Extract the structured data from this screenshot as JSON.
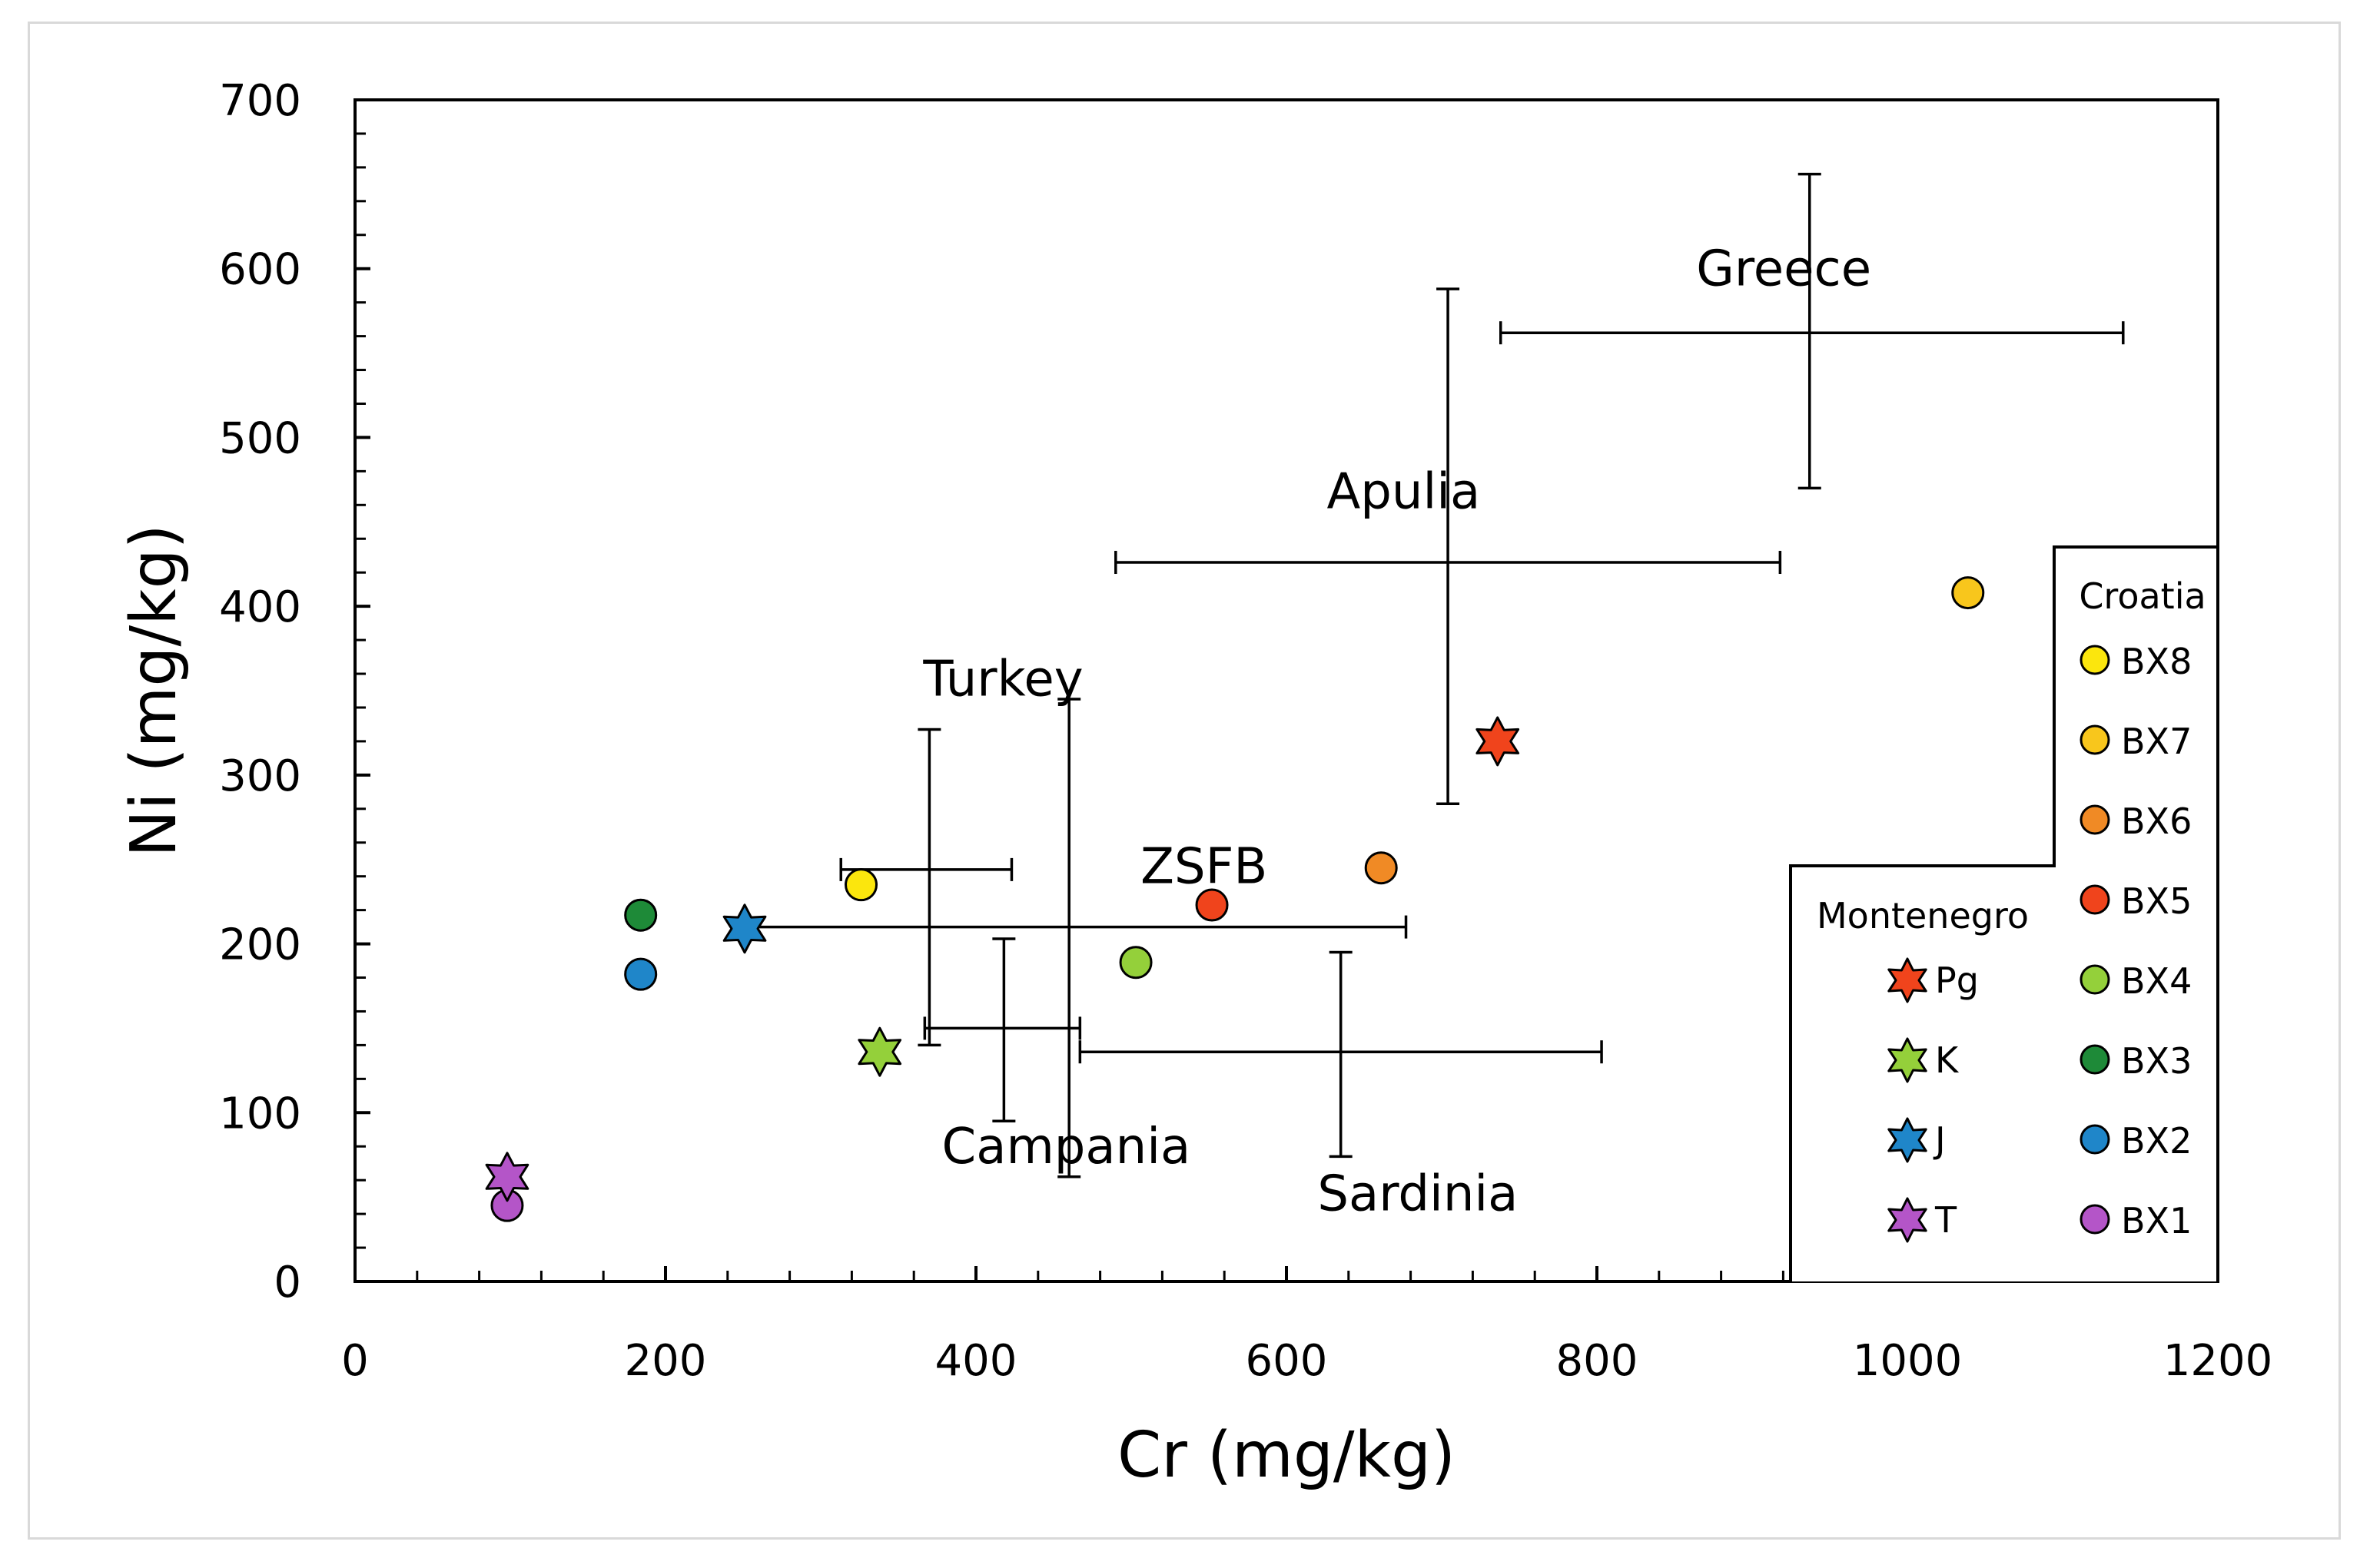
{
  "chart_data": {
    "type": "scatter",
    "xlabel": "Cr (mg/kg)",
    "ylabel": "Ni (mg/kg)",
    "xlim": [
      0,
      1200
    ],
    "ylim": [
      0,
      700
    ],
    "x_ticks": [
      0,
      200,
      400,
      600,
      800,
      1000,
      1200
    ],
    "y_ticks": [
      0,
      100,
      200,
      300,
      400,
      500,
      600,
      700
    ],
    "grid": false,
    "points": [
      {
        "series": "BX1",
        "marker": "circle",
        "color": "#b455c8",
        "x": 98,
        "y": 45
      },
      {
        "series": "BX2",
        "marker": "circle",
        "color": "#1f86c9",
        "x": 184,
        "y": 182
      },
      {
        "series": "BX3",
        "marker": "circle",
        "color": "#1e8a38",
        "x": 184,
        "y": 217
      },
      {
        "series": "BX4",
        "marker": "circle",
        "color": "#94d03a",
        "x": 503,
        "y": 189
      },
      {
        "series": "BX5",
        "marker": "circle",
        "color": "#f0441c",
        "x": 552,
        "y": 223
      },
      {
        "series": "BX6",
        "marker": "circle",
        "color": "#f08a25",
        "x": 661,
        "y": 245
      },
      {
        "series": "BX7",
        "marker": "circle",
        "color": "#f8c61c",
        "x": 1039,
        "y": 408
      },
      {
        "series": "BX8",
        "marker": "circle",
        "color": "#fbe60d",
        "x": 326,
        "y": 235
      },
      {
        "series": "T",
        "marker": "star",
        "color": "#b455c8",
        "x": 98,
        "y": 62
      },
      {
        "series": "J",
        "marker": "star",
        "color": "#1f86c9",
        "x": 251,
        "y": 209
      },
      {
        "series": "K",
        "marker": "star",
        "color": "#94d03a",
        "x": 338,
        "y": 136
      },
      {
        "series": "Pg",
        "marker": "star",
        "color": "#f0441c",
        "x": 736,
        "y": 320
      }
    ],
    "ranges": [
      {
        "name": "Greece",
        "x": 937,
        "y": 562,
        "x_range": [
          738,
          1139
        ],
        "y_range": [
          470,
          656
        ],
        "label_at": [
          864,
          590
        ]
      },
      {
        "name": "Apulia",
        "x": 704,
        "y": 426,
        "x_range": [
          490,
          918
        ],
        "y_range": [
          283,
          588
        ],
        "label_at": [
          626,
          458
        ]
      },
      {
        "name": "Turkey",
        "x": 370,
        "y": 244,
        "x_range": [
          313,
          423
        ],
        "y_range": [
          140,
          327
        ],
        "label_at": [
          366,
          347
        ]
      },
      {
        "name": "ZSFB",
        "x": 460,
        "y": 210,
        "x_range": [
          250,
          677
        ],
        "y_range": [
          62,
          345
        ],
        "label_at": [
          506,
          236
        ]
      },
      {
        "name": "Campania",
        "x": 418,
        "y": 150,
        "x_range": [
          367,
          467
        ],
        "y_range": [
          95,
          203
        ],
        "label_at": [
          378,
          70
        ]
      },
      {
        "name": "Sardinia",
        "x": 635,
        "y": 136,
        "x_range": [
          467,
          803
        ],
        "y_range": [
          74,
          195
        ],
        "label_at": [
          620,
          42
        ]
      }
    ],
    "legend": {
      "position": "bottom-right",
      "croatia_title": "Croatia",
      "croatia": [
        {
          "label": "BX8",
          "color": "#fbe60d"
        },
        {
          "label": "BX7",
          "color": "#f8c61c"
        },
        {
          "label": "BX6",
          "color": "#f08a25"
        },
        {
          "label": "BX5",
          "color": "#f0441c"
        },
        {
          "label": "BX4",
          "color": "#94d03a"
        },
        {
          "label": "BX3",
          "color": "#1e8a38"
        },
        {
          "label": "BX2",
          "color": "#1f86c9"
        },
        {
          "label": "BX1",
          "color": "#b455c8"
        }
      ],
      "montenegro_title": "Montenegro",
      "montenegro": [
        {
          "label": "Pg",
          "color": "#f0441c"
        },
        {
          "label": "K",
          "color": "#94d03a"
        },
        {
          "label": "J",
          "color": "#1f86c9"
        },
        {
          "label": "T",
          "color": "#b455c8"
        }
      ]
    }
  }
}
